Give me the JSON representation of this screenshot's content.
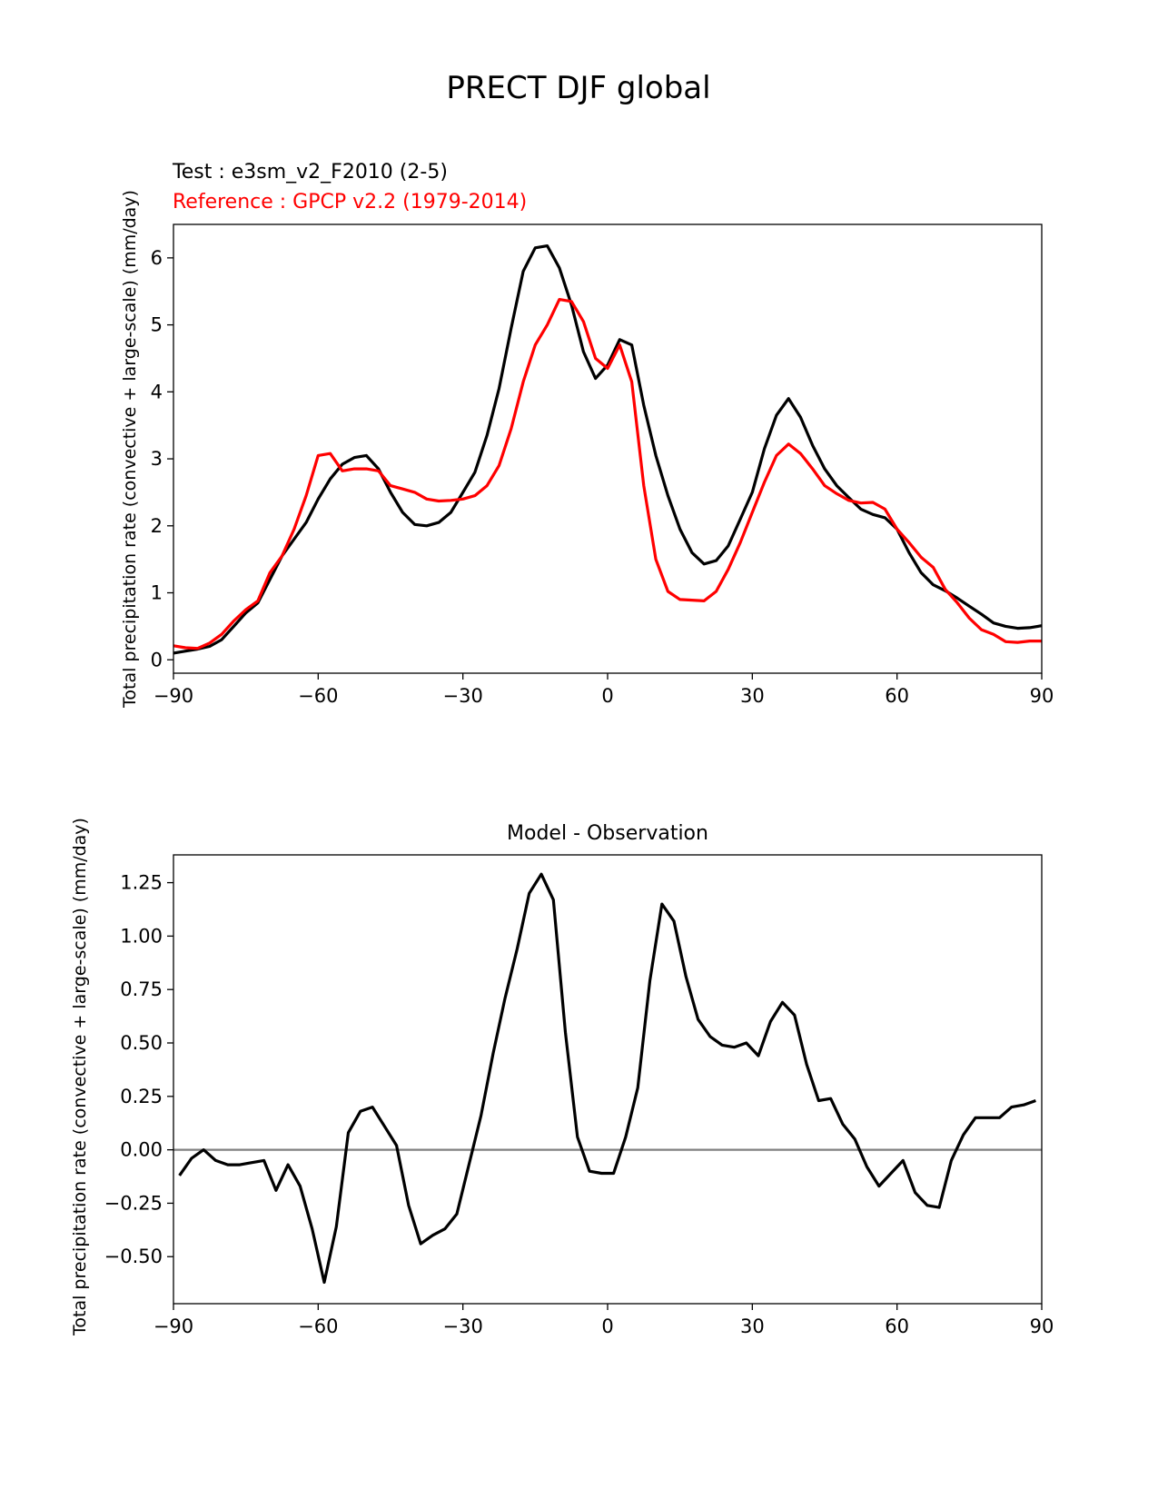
{
  "figure_title": "PRECT DJF global",
  "chart_data": [
    {
      "type": "line",
      "test_label": "Test : e3sm_v2_F2010 (2-5)",
      "reference_label": "Reference : GPCP v2.2 (1979-2014)",
      "ylabel": "Total precipitation rate (convective + large-scale) (mm/day)",
      "xlim": [
        -90,
        90
      ],
      "ylim": [
        -0.2,
        6.5
      ],
      "xticks": [
        -90,
        -60,
        -30,
        0,
        30,
        60,
        90
      ],
      "xtick_labels": [
        "−90",
        "−60",
        "−30",
        "0",
        "30",
        "60",
        "90"
      ],
      "yticks": [
        0,
        1,
        2,
        3,
        4,
        5,
        6
      ],
      "ytick_labels": [
        "0",
        "1",
        "2",
        "3",
        "4",
        "5",
        "6"
      ],
      "grid": false,
      "series": [
        {
          "color": "#000000",
          "x": [
            -90,
            -87.5,
            -85,
            -82.5,
            -80,
            -77.5,
            -75,
            -72.5,
            -70,
            -67.5,
            -65,
            -62.5,
            -60,
            -57.5,
            -55,
            -52.5,
            -50,
            -47.5,
            -45,
            -42.5,
            -40,
            -37.5,
            -35,
            -32.5,
            -30,
            -27.5,
            -25,
            -22.5,
            -20,
            -17.5,
            -15,
            -12.5,
            -10,
            -7.5,
            -5,
            -2.5,
            0,
            2.5,
            5,
            7.5,
            10,
            12.5,
            15,
            17.5,
            20,
            22.5,
            25,
            27.5,
            30,
            32.5,
            35,
            37.5,
            40,
            42.5,
            45,
            47.5,
            50,
            52.5,
            55,
            57.5,
            60,
            62.5,
            65,
            67.5,
            70,
            72.5,
            75,
            77.5,
            80,
            82.5,
            85,
            87.5,
            90
          ],
          "y": [
            0.1,
            0.13,
            0.16,
            0.2,
            0.3,
            0.5,
            0.7,
            0.85,
            1.2,
            1.55,
            1.8,
            2.05,
            2.4,
            2.7,
            2.92,
            3.02,
            3.05,
            2.85,
            2.5,
            2.2,
            2.02,
            2.0,
            2.05,
            2.2,
            2.5,
            2.8,
            3.35,
            4.05,
            4.95,
            5.8,
            6.15,
            6.18,
            5.85,
            5.3,
            4.6,
            4.2,
            4.4,
            4.78,
            4.7,
            3.8,
            3.05,
            2.45,
            1.95,
            1.6,
            1.43,
            1.48,
            1.7,
            2.1,
            2.5,
            3.15,
            3.65,
            3.9,
            3.62,
            3.2,
            2.85,
            2.6,
            2.42,
            2.25,
            2.17,
            2.12,
            1.95,
            1.6,
            1.3,
            1.12,
            1.03,
            0.92,
            0.8,
            0.68,
            0.55,
            0.5,
            0.47,
            0.48,
            0.51
          ]
        },
        {
          "color": "#ff0000",
          "x": [
            -90,
            -87.5,
            -85,
            -82.5,
            -80,
            -77.5,
            -75,
            -72.5,
            -70,
            -67.5,
            -65,
            -62.5,
            -60,
            -57.5,
            -55,
            -52.5,
            -50,
            -47.5,
            -45,
            -42.5,
            -40,
            -37.5,
            -35,
            -32.5,
            -30,
            -27.5,
            -25,
            -22.5,
            -20,
            -17.5,
            -15,
            -12.5,
            -10,
            -7.5,
            -5,
            -2.5,
            0,
            2.5,
            5,
            7.5,
            10,
            12.5,
            15,
            17.5,
            20,
            22.5,
            25,
            27.5,
            30,
            32.5,
            35,
            37.5,
            40,
            42.5,
            45,
            47.5,
            50,
            52.5,
            55,
            57.5,
            60,
            62.5,
            65,
            67.5,
            70,
            72.5,
            75,
            77.5,
            80,
            82.5,
            85,
            87.5,
            90
          ],
          "y": [
            0.21,
            0.18,
            0.17,
            0.25,
            0.38,
            0.58,
            0.75,
            0.88,
            1.3,
            1.55,
            1.95,
            2.45,
            3.05,
            3.08,
            2.82,
            2.85,
            2.85,
            2.82,
            2.6,
            2.55,
            2.5,
            2.4,
            2.37,
            2.38,
            2.4,
            2.45,
            2.6,
            2.9,
            3.45,
            4.15,
            4.7,
            5.0,
            5.38,
            5.35,
            5.05,
            4.5,
            4.35,
            4.7,
            4.15,
            2.6,
            1.5,
            1.02,
            0.9,
            0.89,
            0.88,
            1.02,
            1.35,
            1.75,
            2.2,
            2.65,
            3.05,
            3.22,
            3.08,
            2.85,
            2.6,
            2.48,
            2.38,
            2.34,
            2.35,
            2.25,
            1.95,
            1.75,
            1.53,
            1.38,
            1.05,
            0.85,
            0.62,
            0.45,
            0.38,
            0.27,
            0.26,
            0.28,
            0.28
          ]
        }
      ]
    },
    {
      "type": "line",
      "title": "Model - Observation",
      "ylabel": "Total precipitation rate (convective + large-scale) (mm/day)",
      "xlim": [
        -90,
        90
      ],
      "ylim": [
        -0.72,
        1.38
      ],
      "xticks": [
        -90,
        -60,
        -30,
        0,
        30,
        60,
        90
      ],
      "xtick_labels": [
        "−90",
        "−60",
        "−30",
        "0",
        "30",
        "60",
        "90"
      ],
      "yticks": [
        -0.5,
        -0.25,
        0,
        0.25,
        0.5,
        0.75,
        1.0,
        1.25
      ],
      "ytick_labels": [
        "−0.50",
        "−0.25",
        "0.00",
        "0.25",
        "0.50",
        "0.75",
        "1.00",
        "1.25"
      ],
      "zero_line_color": "#808080",
      "grid": false,
      "series": [
        {
          "color": "#000000",
          "x": [
            -88.75,
            -86.25,
            -83.75,
            -81.25,
            -78.75,
            -76.25,
            -73.75,
            -71.25,
            -68.75,
            -66.25,
            -63.75,
            -61.25,
            -58.75,
            -56.25,
            -53.75,
            -51.25,
            -48.75,
            -46.25,
            -43.75,
            -41.25,
            -38.75,
            -36.25,
            -33.75,
            -31.25,
            -28.75,
            -26.25,
            -23.75,
            -21.25,
            -18.75,
            -16.25,
            -13.75,
            -11.25,
            -8.75,
            -6.25,
            -3.75,
            -1.25,
            1.25,
            3.75,
            6.25,
            8.75,
            11.25,
            13.75,
            16.25,
            18.75,
            21.25,
            23.75,
            26.25,
            28.75,
            31.25,
            33.75,
            36.25,
            38.75,
            41.25,
            43.75,
            46.25,
            48.75,
            51.25,
            53.75,
            56.25,
            58.75,
            61.25,
            63.75,
            66.25,
            68.75,
            71.25,
            73.75,
            76.25,
            78.75,
            81.25,
            83.75,
            86.25,
            88.75
          ],
          "y": [
            -0.12,
            -0.04,
            0.0,
            -0.05,
            -0.07,
            -0.07,
            -0.06,
            -0.05,
            -0.19,
            -0.07,
            -0.17,
            -0.37,
            -0.62,
            -0.36,
            0.08,
            0.18,
            0.2,
            0.11,
            0.02,
            -0.26,
            -0.44,
            -0.4,
            -0.37,
            -0.3,
            -0.07,
            0.16,
            0.45,
            0.71,
            0.94,
            1.2,
            1.29,
            1.17,
            0.55,
            0.06,
            -0.1,
            -0.11,
            -0.11,
            0.06,
            0.29,
            0.79,
            1.15,
            1.07,
            0.81,
            0.61,
            0.53,
            0.49,
            0.48,
            0.5,
            0.44,
            0.6,
            0.69,
            0.63,
            0.4,
            0.23,
            0.24,
            0.12,
            0.05,
            -0.08,
            -0.17,
            -0.11,
            -0.05,
            -0.2,
            -0.26,
            -0.27,
            -0.05,
            0.07,
            0.15,
            0.15,
            0.15,
            0.2,
            0.21,
            0.23
          ]
        }
      ]
    }
  ]
}
